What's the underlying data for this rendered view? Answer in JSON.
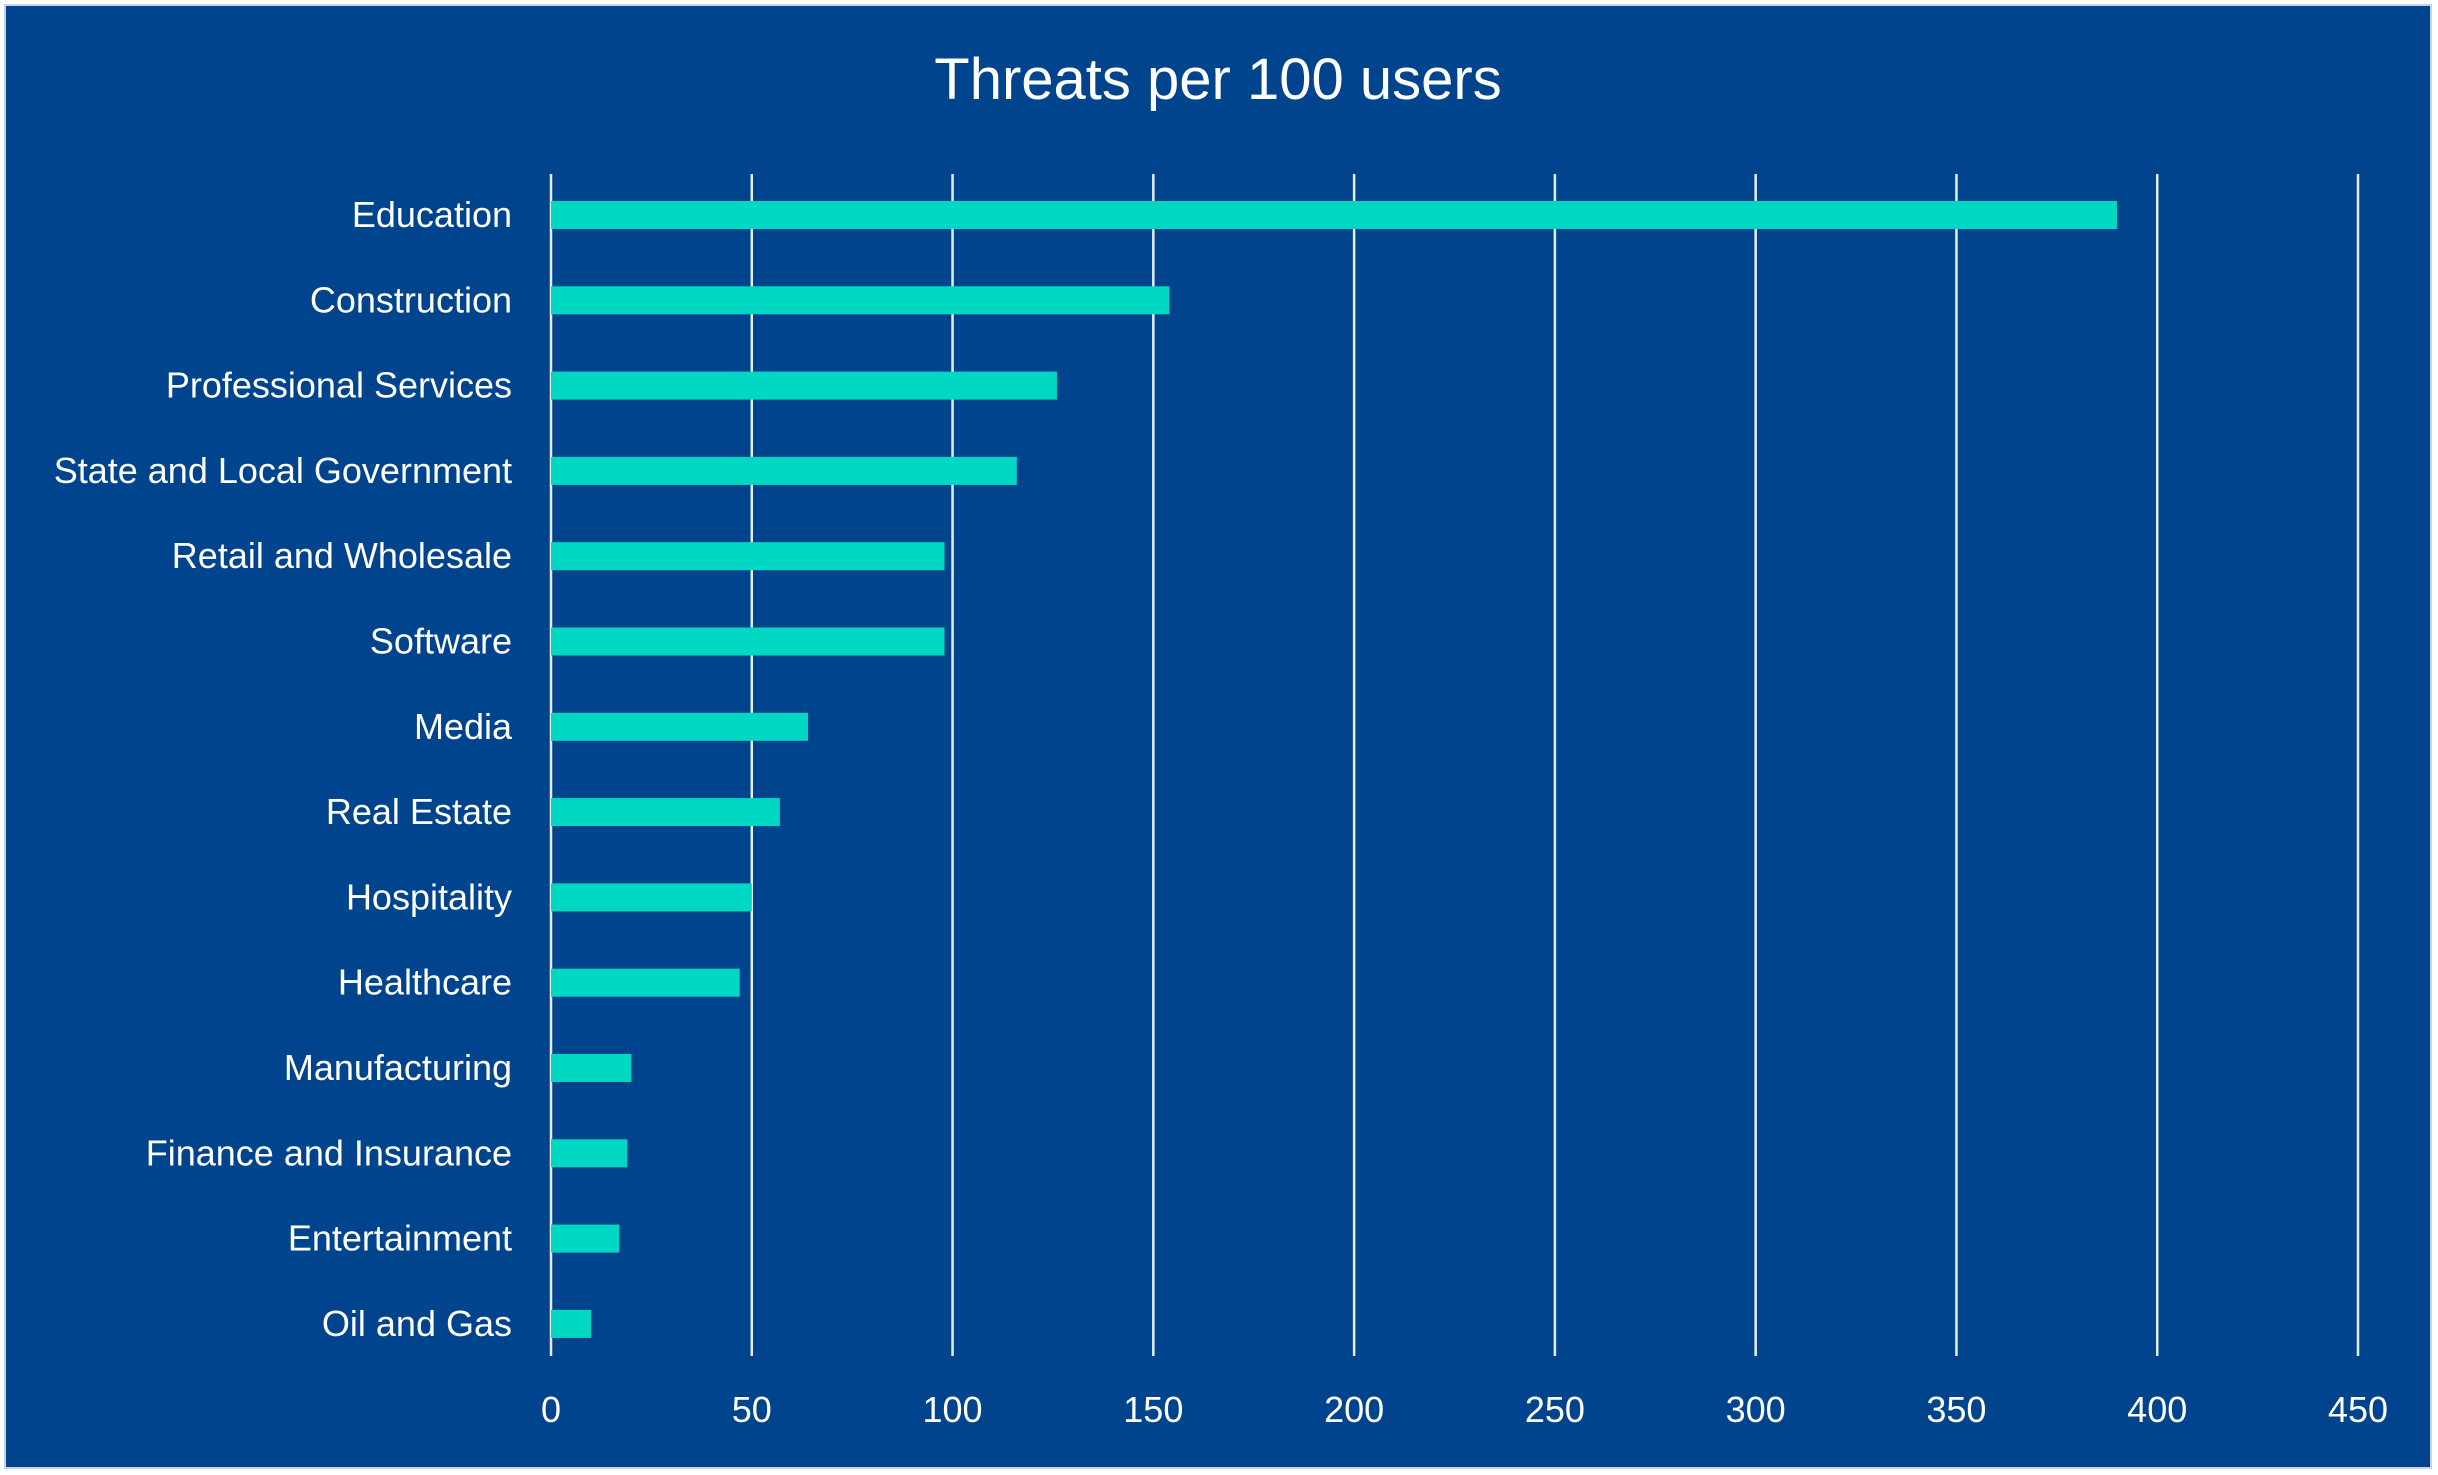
{
  "chart_data": {
    "type": "bar",
    "orientation": "horizontal",
    "title": "Threats per 100 users",
    "xlabel": "",
    "ylabel": "",
    "categories": [
      "Education",
      "Construction",
      "Professional Services",
      "State and Local Government",
      "Retail and Wholesale",
      "Software",
      "Media",
      "Real Estate",
      "Hospitality",
      "Healthcare",
      "Manufacturing",
      "Finance and Insurance",
      "Entertainment",
      "Oil and Gas"
    ],
    "values": [
      390,
      154,
      126,
      116,
      98,
      98,
      64,
      57,
      50,
      47,
      20,
      19,
      17,
      10
    ],
    "xlim": [
      0,
      450
    ],
    "ticks": [
      0,
      50,
      100,
      150,
      200,
      250,
      300,
      350,
      400,
      450
    ],
    "tick_labels": [
      "0",
      "50",
      "100",
      "150",
      "200",
      "250",
      "300",
      "350",
      "400",
      "450"
    ],
    "grid": true,
    "legend": "none"
  },
  "colors": {
    "background": "#00448e",
    "bar": "#00d8c4",
    "grid": "#e6ecf5",
    "text": "#ffffff"
  }
}
